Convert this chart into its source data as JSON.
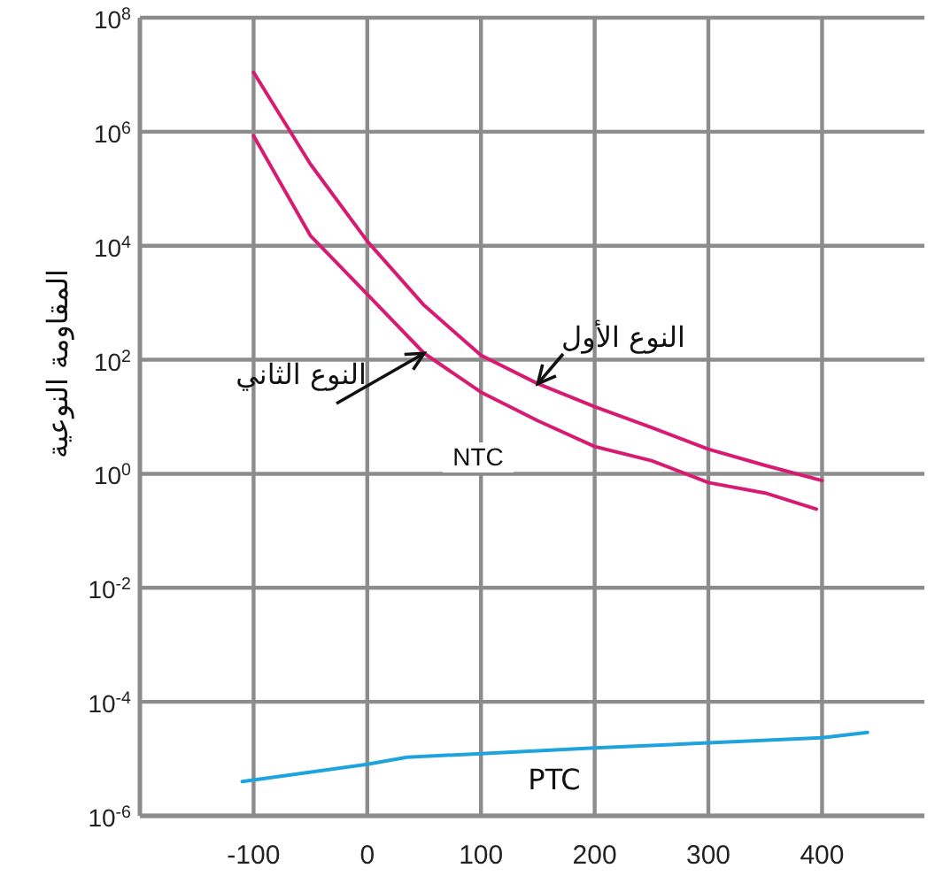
{
  "chart_data": {
    "type": "line",
    "ylabel": "المقاومة النوعية",
    "log": "y",
    "grid": true,
    "marker": "none",
    "xlim": [
      -200,
      490
    ],
    "xticks": [
      -100,
      0,
      100,
      200,
      300,
      400
    ],
    "ylim": [
      1e-06,
      100000000.0
    ],
    "yticks": [
      {
        "value": 1e-06,
        "label": "10$^{-6}$"
      },
      {
        "value": 0.0001,
        "label": "10$^{-4}$"
      },
      {
        "value": 0.01,
        "label": "10$^{-2}$"
      },
      {
        "value": 1,
        "label": "10$^{0}$"
      },
      {
        "value": 100,
        "label": "10$^{2}$"
      },
      {
        "value": 10000.0,
        "label": "10$^{4}$"
      },
      {
        "value": 1000000.0,
        "label": "10$^{6}$"
      },
      {
        "value": 100000000.0,
        "label": "10$^{8}$"
      }
    ],
    "annotations": [
      "NTC"
    ],
    "series": [
      {
        "name": "النوع الأول",
        "color": "#d81b72",
        "x": [
          -100,
          -50,
          0,
          50,
          100,
          150,
          200,
          250,
          300,
          350,
          400
        ],
        "values": [
          11000000,
          270000,
          12000,
          900,
          120,
          38,
          15,
          6.5,
          2.7,
          1.4,
          0.76
        ]
      },
      {
        "name": "النوع الثاني",
        "color": "#d81b72",
        "x": [
          -100,
          -50,
          0,
          50,
          100,
          150,
          200,
          250,
          300,
          350,
          395
        ],
        "values": [
          850000,
          15000,
          1400,
          130,
          27,
          8.5,
          3,
          1.7,
          0.7,
          0.46,
          0.24
        ]
      },
      {
        "name": "PTC",
        "color": "#1fa3dc",
        "x": [
          -110,
          0,
          35,
          100,
          200,
          300,
          400,
          440
        ],
        "values": [
          4e-06,
          8e-06,
          1.07e-05,
          1.23e-05,
          1.55e-05,
          1.9e-05,
          2.35e-05,
          2.9e-05
        ]
      }
    ]
  }
}
